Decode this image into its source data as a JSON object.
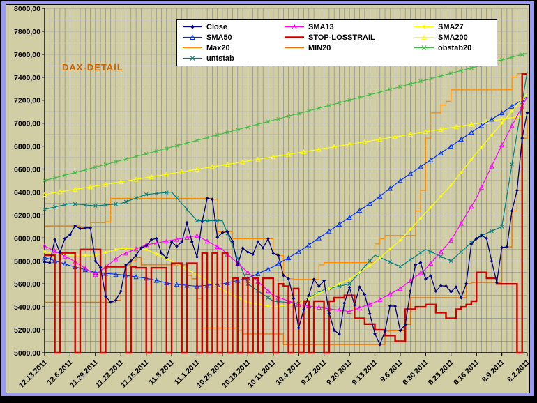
{
  "window": {
    "background_color": "#9a9af0",
    "frame_color": "#000000"
  },
  "chart": {
    "title_label": "DAX-DETAIL",
    "title_color": "#cc6600",
    "background": "#d1cea6",
    "plot_background": "#d1cea6",
    "gridline_color": "#8c8c8c",
    "axis_color": "#000000",
    "legend_background": "#ffffff",
    "legend_border": "#000000"
  },
  "chart_data": {
    "type": "line",
    "title": "DAX-DETAIL",
    "ylim": [
      5000,
      8000
    ],
    "y_tick_step": 200,
    "y_grid_step": 100,
    "y_tick_decimal": "comma",
    "n_points": 96,
    "x_axis_note": "daily points; newest date (12.13.2011) at left, oldest (8.2.2011) at right",
    "x_tick_every": 5,
    "x_tick_labels": [
      "12.13.2011",
      "12.6.2011",
      "11.29.2011",
      "11.22.2011",
      "11.15.2011",
      "11.8.2011",
      "11.1.2011",
      "10.25.2011",
      "10.18.2011",
      "10.11.2011",
      "10.4.2011",
      "9.27.2011",
      "9.20.2011",
      "9.13.2011",
      "9.6.2011",
      "8.30.2011",
      "8.23.2011",
      "8.16.2011",
      "8.9.2011",
      "8.2.2011"
    ],
    "legend_position": "top-center",
    "legend_columns": 3,
    "legend_order": [
      "Close",
      "SMA13",
      "SMA27",
      "SMA50",
      "STOP-LOSSTRAIL",
      "SMA200",
      "Max20",
      "MIN20",
      "obstab20",
      "untstab"
    ],
    "draw_order": [
      "obstab20",
      "SMA200",
      "Max20",
      "MIN20",
      "untstab",
      "SMA50",
      "SMA27",
      "SMA13",
      "STOP-LOSSTRAIL",
      "Close"
    ],
    "series": [
      {
        "name": "Close",
        "color": "#000080",
        "width": 1.3,
        "marker": "diamond",
        "marker_every": 1,
        "step": false,
        "values": [
          5790,
          5785,
          5986,
          5874,
          5994,
          6028,
          6106,
          6081,
          6088,
          6088,
          5799,
          5745,
          5492,
          5441,
          5457,
          5537,
          5766,
          5800,
          5850,
          5913,
          5933,
          5985,
          5995,
          5867,
          5829,
          5965,
          5928,
          5966,
          6133,
          5966,
          5835,
          6141,
          6346,
          6337,
          6006,
          6046,
          6055,
          5970,
          5766,
          5913,
          5877,
          5859,
          5967,
          5914,
          5994,
          5865,
          5847,
          5675,
          5645,
          5473,
          5216,
          5376,
          5502,
          5639,
          5578,
          5628,
          5345,
          5196,
          5164,
          5433,
          5571,
          5416,
          5573,
          5508,
          5340,
          5166,
          5072,
          5189,
          5408,
          5406,
          5193,
          5246,
          5538,
          5766,
          5785,
          5643,
          5670,
          5537,
          5584,
          5581,
          5532,
          5573,
          5480,
          5602,
          5948,
          5995,
          6022,
          5997,
          5798,
          5613,
          5917,
          5923,
          6236,
          6415,
          6870,
          7090
        ]
      },
      {
        "name": "SMA13",
        "color": "#ff00ff",
        "width": 1.2,
        "marker": "tri-open",
        "marker_every": 2,
        "step": false,
        "values": [
          5930,
          5908,
          5886,
          5864,
          5842,
          5820,
          5792,
          5764,
          5736,
          5708,
          5680,
          5714,
          5748,
          5782,
          5816,
          5850,
          5868,
          5886,
          5904,
          5922,
          5940,
          5948,
          5956,
          5964,
          5972,
          5980,
          5988,
          5996,
          6004,
          6012,
          6020,
          5996,
          5972,
          5948,
          5924,
          5900,
          5860,
          5820,
          5780,
          5740,
          5700,
          5660,
          5620,
          5580,
          5540,
          5500,
          5484,
          5468,
          5452,
          5436,
          5420,
          5414,
          5408,
          5402,
          5396,
          5390,
          5384,
          5378,
          5372,
          5366,
          5360,
          5376,
          5392,
          5408,
          5424,
          5440,
          5464,
          5488,
          5512,
          5536,
          5560,
          5594,
          5628,
          5662,
          5696,
          5730,
          5780,
          5830,
          5880,
          5930,
          5980,
          6054,
          6128,
          6202,
          6276,
          6350,
          6442,
          6534,
          6626,
          6718,
          6810,
          6894,
          6978,
          7062,
          7146,
          7230
        ]
      },
      {
        "name": "SMA27",
        "color": "#ffff00",
        "width": 1.2,
        "marker": "diamond",
        "marker_every": 2,
        "step": false,
        "values": [
          5880,
          5874,
          5868,
          5862,
          5856,
          5850,
          5850,
          5850,
          5850,
          5850,
          5850,
          5862,
          5874,
          5886,
          5898,
          5910,
          5908,
          5906,
          5904,
          5902,
          5900,
          5880,
          5860,
          5840,
          5820,
          5800,
          5776,
          5752,
          5728,
          5704,
          5680,
          5654,
          5628,
          5602,
          5576,
          5550,
          5528,
          5506,
          5484,
          5462,
          5440,
          5432,
          5424,
          5416,
          5408,
          5400,
          5406,
          5412,
          5418,
          5424,
          5430,
          5452,
          5474,
          5496,
          5518,
          5540,
          5560,
          5580,
          5600,
          5620,
          5640,
          5670,
          5700,
          5730,
          5760,
          5790,
          5828,
          5866,
          5904,
          5942,
          5980,
          6028,
          6076,
          6124,
          6172,
          6220,
          6268,
          6316,
          6364,
          6412,
          6460,
          6516,
          6572,
          6628,
          6684,
          6740,
          6792,
          6844,
          6896,
          6948,
          7000,
          7052,
          7104,
          7156,
          7208,
          7260
        ]
      },
      {
        "name": "SMA50",
        "color": "#0033ff",
        "width": 1.2,
        "marker": "tri-open",
        "marker_every": 2,
        "step": false,
        "values": [
          5830,
          5816,
          5802,
          5788,
          5774,
          5760,
          5748,
          5736,
          5724,
          5712,
          5700,
          5696,
          5692,
          5688,
          5684,
          5680,
          5674,
          5668,
          5662,
          5656,
          5650,
          5640,
          5630,
          5620,
          5610,
          5600,
          5596,
          5592,
          5588,
          5584,
          5580,
          5584,
          5588,
          5592,
          5596,
          5600,
          5610,
          5620,
          5630,
          5640,
          5650,
          5670,
          5690,
          5710,
          5730,
          5750,
          5776,
          5802,
          5828,
          5854,
          5880,
          5910,
          5940,
          5970,
          6000,
          6030,
          6060,
          6090,
          6120,
          6150,
          6180,
          6210,
          6240,
          6270,
          6300,
          6330,
          6364,
          6398,
          6432,
          6466,
          6500,
          6530,
          6560,
          6590,
          6620,
          6650,
          6680,
          6710,
          6740,
          6770,
          6800,
          6830,
          6860,
          6890,
          6920,
          6950,
          6978,
          7006,
          7034,
          7062,
          7090,
          7118,
          7146,
          7174,
          7202,
          7230
        ]
      },
      {
        "name": "STOP-LOSSTRAIL",
        "color": "#cc0000",
        "width": 2.4,
        "marker": "none",
        "marker_every": 1,
        "step": true,
        "values": [
          5850,
          5850,
          5000,
          5870,
          5870,
          5870,
          5000,
          5900,
          5900,
          5900,
          5900,
          5000,
          5750,
          5750,
          5750,
          5750,
          5000,
          5750,
          5740,
          5740,
          5000,
          5740,
          5740,
          5740,
          5000,
          5780,
          5780,
          5000,
          5780,
          5780,
          5000,
          5870,
          5000,
          5870,
          5000,
          5870,
          5000,
          5650,
          5000,
          5650,
          5000,
          5650,
          5000,
          5650,
          5650,
          5000,
          5600,
          5580,
          5000,
          5560,
          5000,
          5450,
          5000,
          5450,
          5450,
          5000,
          5450,
          5480,
          5480,
          5500,
          5500,
          5300,
          5300,
          5250,
          5250,
          5200,
          5200,
          5150,
          5150,
          5100,
          5100,
          5380,
          5380,
          5400,
          5400,
          5420,
          5420,
          5350,
          5350,
          5300,
          5300,
          5380,
          5400,
          5420,
          5450,
          5700,
          5700,
          5650,
          5650,
          5600,
          5600,
          5600,
          5600,
          5000,
          7430,
          7430
        ]
      },
      {
        "name": "SMA200",
        "color": "#ffff00",
        "width": 1.2,
        "marker": "tri-open",
        "marker_every": 3,
        "step": false,
        "values": [
          6380,
          6387,
          6395,
          6402,
          6409,
          6416,
          6424,
          6431,
          6438,
          6445,
          6453,
          6460,
          6467,
          6474,
          6482,
          6489,
          6496,
          6503,
          6511,
          6518,
          6525,
          6533,
          6540,
          6547,
          6554,
          6562,
          6569,
          6576,
          6583,
          6591,
          6598,
          6605,
          6612,
          6620,
          6627,
          6634,
          6642,
          6649,
          6656,
          6663,
          6671,
          6678,
          6685,
          6692,
          6700,
          6707,
          6714,
          6721,
          6729,
          6736,
          6743,
          6750,
          6758,
          6765,
          6772,
          6780,
          6787,
          6794,
          6801,
          6809,
          6816,
          6823,
          6830,
          6838,
          6845,
          6852,
          6859,
          6867,
          6874,
          6881,
          6888,
          6896,
          6903,
          6910,
          6918,
          6925,
          6932,
          6939,
          6947,
          6954,
          6961,
          6968,
          6976,
          6983,
          6990,
          6997,
          7005,
          7012,
          7019,
          7027,
          7034,
          7041,
          7048,
          7056,
          7063,
          7070
        ]
      },
      {
        "name": "Max20",
        "color": "#ff8c00",
        "width": 1.3,
        "marker": "none",
        "marker_every": 1,
        "step": true,
        "values": [
          6106,
          6106,
          6106,
          6106,
          6106,
          6106,
          6106,
          6088,
          6088,
          6133,
          6133,
          6133,
          6141,
          6346,
          6346,
          6346,
          6346,
          6346,
          6346,
          6346,
          6346,
          6346,
          6346,
          6346,
          6346,
          6346,
          6346,
          6346,
          6346,
          6346,
          6346,
          6346,
          6346,
          6337,
          6055,
          6055,
          6055,
          5994,
          5994,
          5994,
          5994,
          5994,
          5994,
          5994,
          5994,
          5865,
          5847,
          5675,
          5645,
          5639,
          5639,
          5639,
          5639,
          5639,
          5766,
          5785,
          5785,
          5785,
          5785,
          5785,
          5785,
          5785,
          5785,
          5785,
          5785,
          5948,
          5995,
          6022,
          6022,
          6022,
          6022,
          6022,
          6022,
          6236,
          6415,
          6870,
          7090,
          7090,
          7159,
          7190,
          7290,
          7290,
          7290,
          7290,
          7290,
          7290,
          7290,
          7290,
          7290,
          7290,
          7290,
          7291,
          7402,
          7431,
          7431,
          7432
        ]
      },
      {
        "name": "MIN20",
        "color": "#e87000",
        "width": 1.3,
        "marker": "none",
        "marker_every": 1,
        "step": true,
        "values": [
          5441,
          5441,
          5441,
          5441,
          5441,
          5441,
          5441,
          5441,
          5441,
          5441,
          5441,
          5441,
          5441,
          5441,
          5457,
          5537,
          5766,
          5800,
          5829,
          5766,
          5766,
          5766,
          5766,
          5766,
          5766,
          5766,
          5766,
          5766,
          5675,
          5645,
          5473,
          5216,
          5216,
          5216,
          5216,
          5216,
          5216,
          5216,
          5196,
          5164,
          5164,
          5164,
          5164,
          5164,
          5164,
          5164,
          5164,
          5072,
          5072,
          5072,
          5072,
          5072,
          5072,
          5072,
          5072,
          5072,
          5072,
          5072,
          5072,
          5072,
          5072,
          5072,
          5072,
          5072,
          5072,
          5072,
          5072,
          5189,
          5193,
          5193,
          5193,
          5246,
          5480,
          5480,
          5480,
          5480,
          5480,
          5480,
          5480,
          5480,
          5480,
          5480,
          5480,
          5602,
          5613,
          5613,
          5613,
          5613,
          5613,
          5613,
          5917,
          5923,
          6236,
          6415,
          6870,
          7040
        ]
      },
      {
        "name": "obstab20",
        "color": "#44bb44",
        "width": 1.2,
        "marker": "x",
        "marker_every": 2,
        "step": false,
        "values": [
          6500,
          6512,
          6523,
          6535,
          6547,
          6558,
          6570,
          6582,
          6593,
          6605,
          6617,
          6629,
          6640,
          6652,
          6664,
          6675,
          6687,
          6699,
          6710,
          6722,
          6734,
          6745,
          6757,
          6769,
          6780,
          6792,
          6804,
          6815,
          6827,
          6839,
          6851,
          6862,
          6874,
          6886,
          6897,
          6909,
          6921,
          6932,
          6944,
          6956,
          6967,
          6979,
          6991,
          7002,
          7014,
          7026,
          7037,
          7049,
          7061,
          7073,
          7084,
          7096,
          7108,
          7119,
          7131,
          7143,
          7154,
          7166,
          7178,
          7189,
          7201,
          7213,
          7224,
          7236,
          7248,
          7259,
          7271,
          7283,
          7295,
          7306,
          7318,
          7330,
          7341,
          7353,
          7365,
          7376,
          7388,
          7400,
          7411,
          7423,
          7435,
          7446,
          7458,
          7470,
          7481,
          7493,
          7505,
          7517,
          7528,
          7540,
          7552,
          7563,
          7575,
          7587,
          7598,
          7610
        ]
      },
      {
        "name": "untstab",
        "color": "#008080",
        "width": 1.2,
        "marker": "x",
        "marker_every": 2,
        "step": false,
        "values": [
          6250,
          6260,
          6270,
          6280,
          6290,
          6300,
          6296,
          6292,
          6288,
          6284,
          6280,
          6284,
          6288,
          6292,
          6296,
          6300,
          6316,
          6332,
          6348,
          6364,
          6380,
          6384,
          6388,
          6392,
          6396,
          6400,
          6350,
          6300,
          6250,
          6200,
          6150,
          6150,
          6150,
          6150,
          6150,
          6150,
          6040,
          5930,
          5820,
          5710,
          5600,
          5570,
          5540,
          5510,
          5480,
          5450,
          5446,
          5442,
          5438,
          5434,
          5430,
          5454,
          5478,
          5502,
          5526,
          5550,
          5560,
          5570,
          5580,
          5590,
          5600,
          5650,
          5700,
          5750,
          5800,
          5850,
          5830,
          5810,
          5790,
          5770,
          5750,
          5780,
          5810,
          5840,
          5870,
          5900,
          5880,
          5860,
          5840,
          5820,
          5800,
          5840,
          5880,
          5920,
          5960,
          6000,
          6020,
          6040,
          6060,
          6080,
          6100,
          6370,
          6640,
          6910,
          7180,
          7450
        ]
      }
    ]
  }
}
